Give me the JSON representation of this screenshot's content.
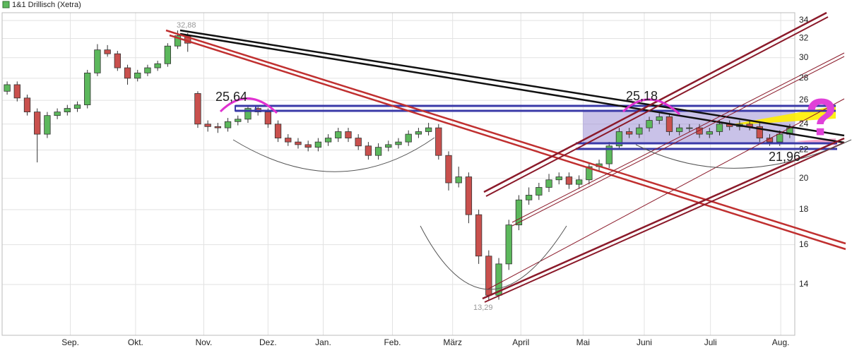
{
  "chart_data": {
    "type": "candlestick",
    "title": "1&1 Drillisch (Xetra)",
    "log_scale": true,
    "grid": true,
    "up_color": "#5cb85c",
    "down_color": "#c9504d",
    "ylim": [
      11.8,
      34.9
    ],
    "yticks": [
      14,
      16,
      18,
      20,
      22,
      24,
      26,
      28,
      30,
      32,
      34
    ],
    "xlim": [
      -0.5,
      78.5
    ],
    "xticks": [
      {
        "value": 6.3,
        "label": "Sep."
      },
      {
        "value": 12.8,
        "label": "Okt."
      },
      {
        "value": 19.6,
        "label": "Nov."
      },
      {
        "value": 26.0,
        "label": "Dez."
      },
      {
        "value": 31.5,
        "label": "Jan."
      },
      {
        "value": 38.4,
        "label": "Feb."
      },
      {
        "value": 44.4,
        "label": "März"
      },
      {
        "value": 51.2,
        "label": "April"
      },
      {
        "value": 57.4,
        "label": "Mai"
      },
      {
        "value": 63.5,
        "label": "Juni"
      },
      {
        "value": 70.1,
        "label": "Juli"
      },
      {
        "value": 77.1,
        "label": "Aug."
      }
    ],
    "open": [
      26.8,
      27.4,
      26.2,
      25.0,
      23.2,
      24.7,
      25.0,
      25.3,
      25.6,
      28.5,
      30.8,
      30.4,
      29.0,
      28.0,
      28.5,
      29.0,
      29.4,
      31.2,
      32.3,
      26.6,
      24.0,
      23.8,
      23.7,
      24.2,
      24.4,
      25.3,
      25.0,
      24.0,
      22.9,
      22.6,
      22.4,
      22.2,
      22.6,
      22.9,
      23.4,
      22.9,
      22.3,
      21.6,
      22.2,
      22.4,
      22.6,
      23.2,
      23.4,
      23.7,
      21.6,
      19.7,
      20.1,
      17.7,
      15.4,
      13.5,
      15.0,
      17.1,
      18.6,
      18.9,
      19.4,
      19.9,
      20.1,
      19.6,
      19.9,
      20.8,
      21.0,
      22.3,
      23.4,
      23.2,
      23.7,
      24.3,
      24.6,
      23.4,
      23.7,
      23.7,
      23.2,
      23.4,
      24.0,
      23.8,
      24.0,
      23.8,
      22.9,
      22.6,
      23.2
    ],
    "high": [
      27.7,
      27.7,
      26.5,
      25.3,
      25.0,
      25.3,
      25.6,
      25.9,
      28.8,
      31.4,
      31.3,
      30.7,
      29.3,
      28.8,
      29.3,
      29.7,
      31.5,
      32.88,
      32.6,
      26.8,
      24.3,
      24.1,
      24.5,
      24.7,
      25.6,
      25.6,
      25.3,
      24.3,
      23.2,
      22.9,
      22.7,
      22.9,
      23.2,
      23.7,
      23.7,
      23.2,
      22.6,
      22.5,
      22.7,
      22.9,
      23.5,
      23.7,
      24.1,
      24.0,
      21.9,
      20.8,
      20.4,
      18.0,
      15.7,
      15.3,
      17.4,
      18.9,
      19.4,
      19.7,
      20.3,
      20.4,
      20.4,
      20.2,
      21.1,
      21.3,
      22.6,
      23.7,
      23.7,
      24.0,
      24.6,
      24.9,
      24.9,
      24.0,
      24.0,
      24.0,
      23.7,
      24.3,
      24.3,
      24.3,
      24.3,
      24.1,
      23.2,
      23.5,
      24.0
    ],
    "low": [
      26.5,
      25.9,
      24.7,
      21.1,
      22.9,
      24.4,
      24.7,
      25.0,
      25.3,
      28.2,
      30.1,
      28.7,
      27.4,
      27.7,
      28.2,
      28.7,
      29.1,
      30.9,
      30.6,
      23.7,
      23.4,
      23.3,
      23.4,
      23.9,
      24.1,
      24.7,
      23.7,
      22.6,
      22.3,
      22.1,
      21.9,
      21.9,
      22.3,
      22.6,
      22.6,
      22.0,
      21.3,
      21.3,
      21.9,
      22.1,
      22.3,
      22.9,
      23.1,
      21.3,
      19.2,
      19.4,
      17.2,
      15.0,
      13.29,
      13.3,
      14.7,
      16.8,
      18.3,
      18.6,
      19.1,
      19.6,
      19.3,
      19.3,
      19.6,
      20.5,
      20.7,
      22.0,
      22.9,
      22.9,
      23.4,
      24.0,
      23.1,
      23.1,
      23.4,
      22.9,
      22.9,
      23.1,
      23.5,
      23.5,
      23.5,
      22.6,
      22.3,
      22.3,
      22.9
    ],
    "close": [
      27.4,
      26.2,
      25.0,
      23.2,
      24.7,
      25.0,
      25.3,
      25.6,
      28.5,
      30.8,
      30.4,
      29.0,
      28.0,
      28.5,
      29.0,
      29.4,
      31.2,
      32.3,
      31.5,
      24.0,
      23.8,
      23.7,
      24.2,
      24.4,
      25.3,
      25.0,
      24.0,
      22.9,
      22.6,
      22.4,
      22.2,
      22.6,
      22.9,
      23.4,
      22.9,
      22.3,
      21.6,
      22.2,
      22.4,
      22.6,
      23.2,
      23.4,
      23.7,
      21.6,
      19.7,
      20.1,
      17.7,
      15.4,
      13.5,
      15.0,
      17.1,
      18.6,
      18.9,
      19.4,
      19.9,
      20.1,
      19.6,
      19.9,
      20.8,
      21.0,
      22.3,
      23.4,
      23.2,
      23.7,
      24.3,
      24.6,
      23.4,
      23.7,
      23.7,
      23.2,
      23.4,
      24.0,
      23.8,
      24.0,
      23.8,
      22.9,
      22.6,
      23.2,
      23.7
    ],
    "annotations": [
      "32,88",
      "13,29",
      "25,64",
      "25,18",
      "21,96",
      "?"
    ]
  }
}
